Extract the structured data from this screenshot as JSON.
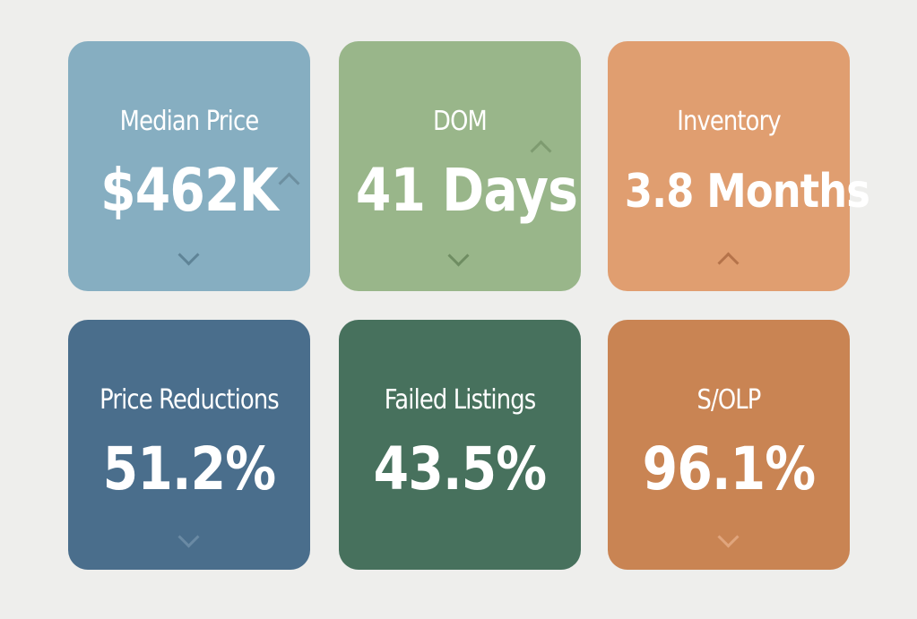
{
  "tiles": [
    {
      "label": "Median Price",
      "value": "$462K",
      "bg": "#86aec1",
      "trend_icons": [
        "up-chevron-icon",
        "down-chevron-icon"
      ]
    },
    {
      "label": "DOM",
      "value": "41 Days",
      "bg": "#99b68a",
      "trend_icons": [
        "up-chevron-icon",
        "down-chevron-icon"
      ]
    },
    {
      "label": "Inventory",
      "value": "3.8 Months",
      "bg": "#e09e70",
      "trend_icons": [
        "up-chevron-icon"
      ]
    },
    {
      "label": "Price Reductions",
      "value": "51.2%",
      "bg": "#4a6e8c",
      "trend_icons": [
        "down-chevron-icon"
      ]
    },
    {
      "label": "Failed Listings",
      "value": "43.5%",
      "bg": "#47715d",
      "trend_icons": [
        "down-chevron-icon"
      ]
    },
    {
      "label": "S/OLP",
      "value": "96.1%",
      "bg": "#c98453",
      "trend_icons": [
        "down-chevron-icon"
      ]
    }
  ],
  "colors": {
    "page_background": "#eeeeec",
    "text": "#ffffff"
  }
}
